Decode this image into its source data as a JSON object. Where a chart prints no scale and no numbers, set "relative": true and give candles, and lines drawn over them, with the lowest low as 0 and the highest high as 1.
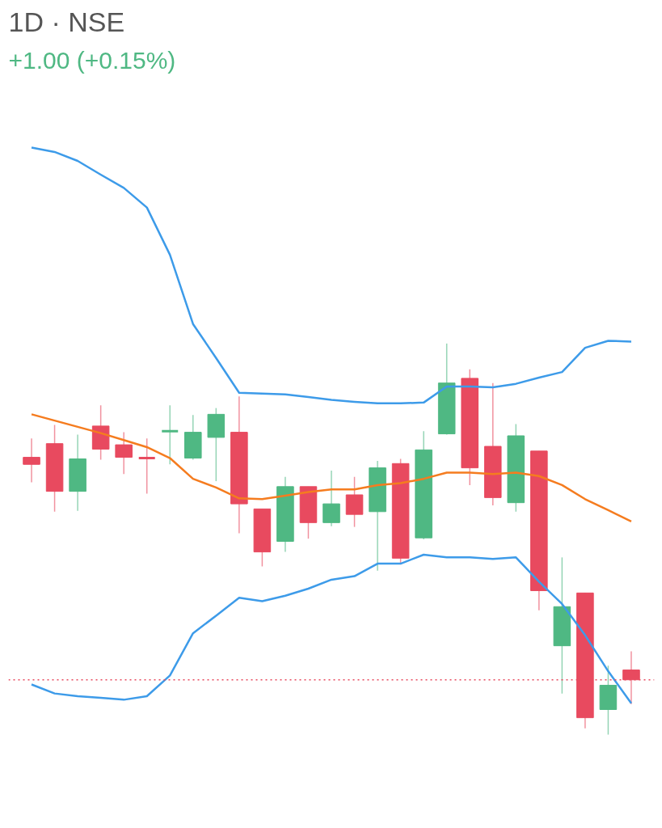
{
  "chart_data": {
    "type": "candlestick",
    "title": "1D · NSE",
    "relative": true,
    "annotations": [
      "+1.00 (+0.15%)"
    ],
    "categories": [
      null,
      null,
      null,
      null,
      null,
      null,
      null,
      null,
      null,
      null,
      null,
      null,
      null,
      null,
      null,
      null,
      null,
      null,
      null,
      null,
      null,
      null,
      null,
      null,
      null,
      null,
      null
    ],
    "ohlc": [
      [
        0.709,
        0.757,
        0.645,
        0.691
      ],
      [
        0.744,
        0.792,
        0.57,
        0.622
      ],
      [
        0.622,
        0.767,
        0.572,
        0.705
      ],
      [
        0.789,
        0.842,
        0.703,
        0.73
      ],
      [
        0.741,
        0.773,
        0.666,
        0.709
      ],
      [
        0.707,
        0.757,
        0.616,
        0.705
      ],
      [
        0.776,
        0.842,
        0.691,
        0.776
      ],
      [
        0.707,
        0.817,
        0.703,
        0.773
      ],
      [
        0.76,
        0.835,
        0.648,
        0.819
      ],
      [
        0.773,
        0.865,
        0.515,
        0.59
      ],
      [
        0.577,
        0.577,
        0.43,
        0.467
      ],
      [
        0.494,
        0.659,
        0.467,
        0.634
      ],
      [
        0.634,
        0.634,
        0.501,
        0.542
      ],
      [
        0.542,
        0.675,
        0.533,
        0.59
      ],
      [
        0.613,
        0.659,
        0.531,
        0.563
      ],
      [
        0.57,
        0.7,
        0.419,
        0.682
      ],
      [
        0.693,
        0.705,
        0.435,
        0.451
      ],
      [
        0.503,
        0.776,
        0.499,
        0.728
      ],
      [
        0.769,
        1.0,
        0.767,
        0.899
      ],
      [
        0.911,
        0.934,
        0.638,
        0.682
      ],
      [
        0.737,
        0.899,
        0.586,
        0.606
      ],
      [
        0.593,
        0.794,
        0.57,
        0.764
      ],
      [
        0.725,
        0.725,
        0.318,
        0.368
      ],
      [
        0.227,
        0.453,
        0.105,
        0.327
      ],
      [
        0.362,
        0.362,
        0.016,
        0.043
      ],
      [
        0.064,
        0.176,
        0.0,
        0.126
      ],
      [
        0.165,
        0.213,
        0.078,
        0.14
      ]
    ],
    "colors": [
      "#e84a5f",
      "#e84a5f",
      "#4fb883",
      "#e84a5f",
      "#e84a5f",
      "#e84a5f",
      "#4fb883",
      "#4fb883",
      "#4fb883",
      "#e84a5f",
      "#e84a5f",
      "#4fb883",
      "#e84a5f",
      "#4fb883",
      "#e84a5f",
      "#4fb883",
      "#e84a5f",
      "#4fb883",
      "#4fb883",
      "#e84a5f",
      "#e84a5f",
      "#4fb883",
      "#e84a5f",
      "#4fb883",
      "#e84a5f",
      "#4fb883",
      "#e84a5f"
    ],
    "series": [
      {
        "type": "line",
        "color": "#3d9be9",
        "values": [
          1.501,
          1.49,
          1.467,
          1.432,
          1.398,
          1.348,
          1.227,
          1.05,
          0.963,
          0.874,
          0.872,
          0.87,
          0.863,
          0.856,
          0.851,
          0.847,
          0.847,
          0.849,
          0.89,
          0.89,
          0.888,
          0.897,
          0.913,
          0.927,
          0.989,
          1.007,
          1.005
        ]
      },
      {
        "type": "line",
        "color": "#f57c1f",
        "values": [
          0.819,
          0.803,
          0.787,
          0.771,
          0.753,
          0.735,
          0.707,
          0.654,
          0.632,
          0.604,
          0.602,
          0.611,
          0.62,
          0.627,
          0.627,
          0.638,
          0.643,
          0.654,
          0.67,
          0.67,
          0.666,
          0.67,
          0.661,
          0.638,
          0.602,
          0.574,
          0.545
        ]
      },
      {
        "type": "line",
        "color": "#3d9be9",
        "values": [
          0.128,
          0.105,
          0.098,
          0.094,
          0.089,
          0.098,
          0.151,
          0.259,
          0.304,
          0.35,
          0.341,
          0.355,
          0.373,
          0.396,
          0.405,
          0.437,
          0.437,
          0.46,
          0.453,
          0.453,
          0.449,
          0.453,
          0.391,
          0.334,
          0.254,
          0.162,
          0.08
        ]
      }
    ],
    "ref_lines": [
      {
        "axis": "y",
        "value": 0.14,
        "color": "#e84a5f",
        "line_style": "dotted"
      }
    ]
  }
}
